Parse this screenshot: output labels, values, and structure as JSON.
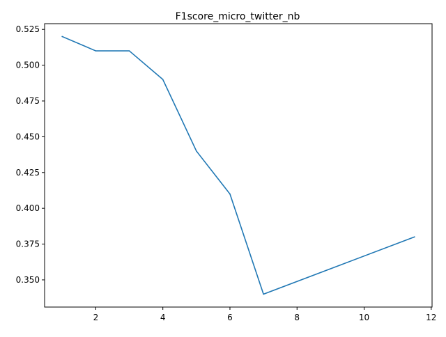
{
  "chart_data": {
    "type": "line",
    "title": "F1score_micro_twitter_nb",
    "xlabel": "",
    "ylabel": "",
    "xlim": [
      0.475,
      12.025
    ],
    "ylim": [
      0.331,
      0.529
    ],
    "xticks": [
      2,
      4,
      6,
      8,
      10,
      12
    ],
    "yticks": [
      0.35,
      0.375,
      0.4,
      0.425,
      0.45,
      0.475,
      0.5,
      0.525
    ],
    "xtick_labels": [
      "2",
      "4",
      "6",
      "8",
      "10",
      "12"
    ],
    "ytick_labels": [
      "0.350",
      "0.375",
      "0.400",
      "0.425",
      "0.450",
      "0.475",
      "0.500",
      "0.525"
    ],
    "grid": false,
    "series": [
      {
        "color": "#1f77b4",
        "x": [
          1,
          2,
          3,
          4,
          5,
          6,
          7,
          11.5
        ],
        "y": [
          0.52,
          0.51,
          0.51,
          0.49,
          0.44,
          0.41,
          0.34,
          0.38
        ]
      }
    ]
  }
}
